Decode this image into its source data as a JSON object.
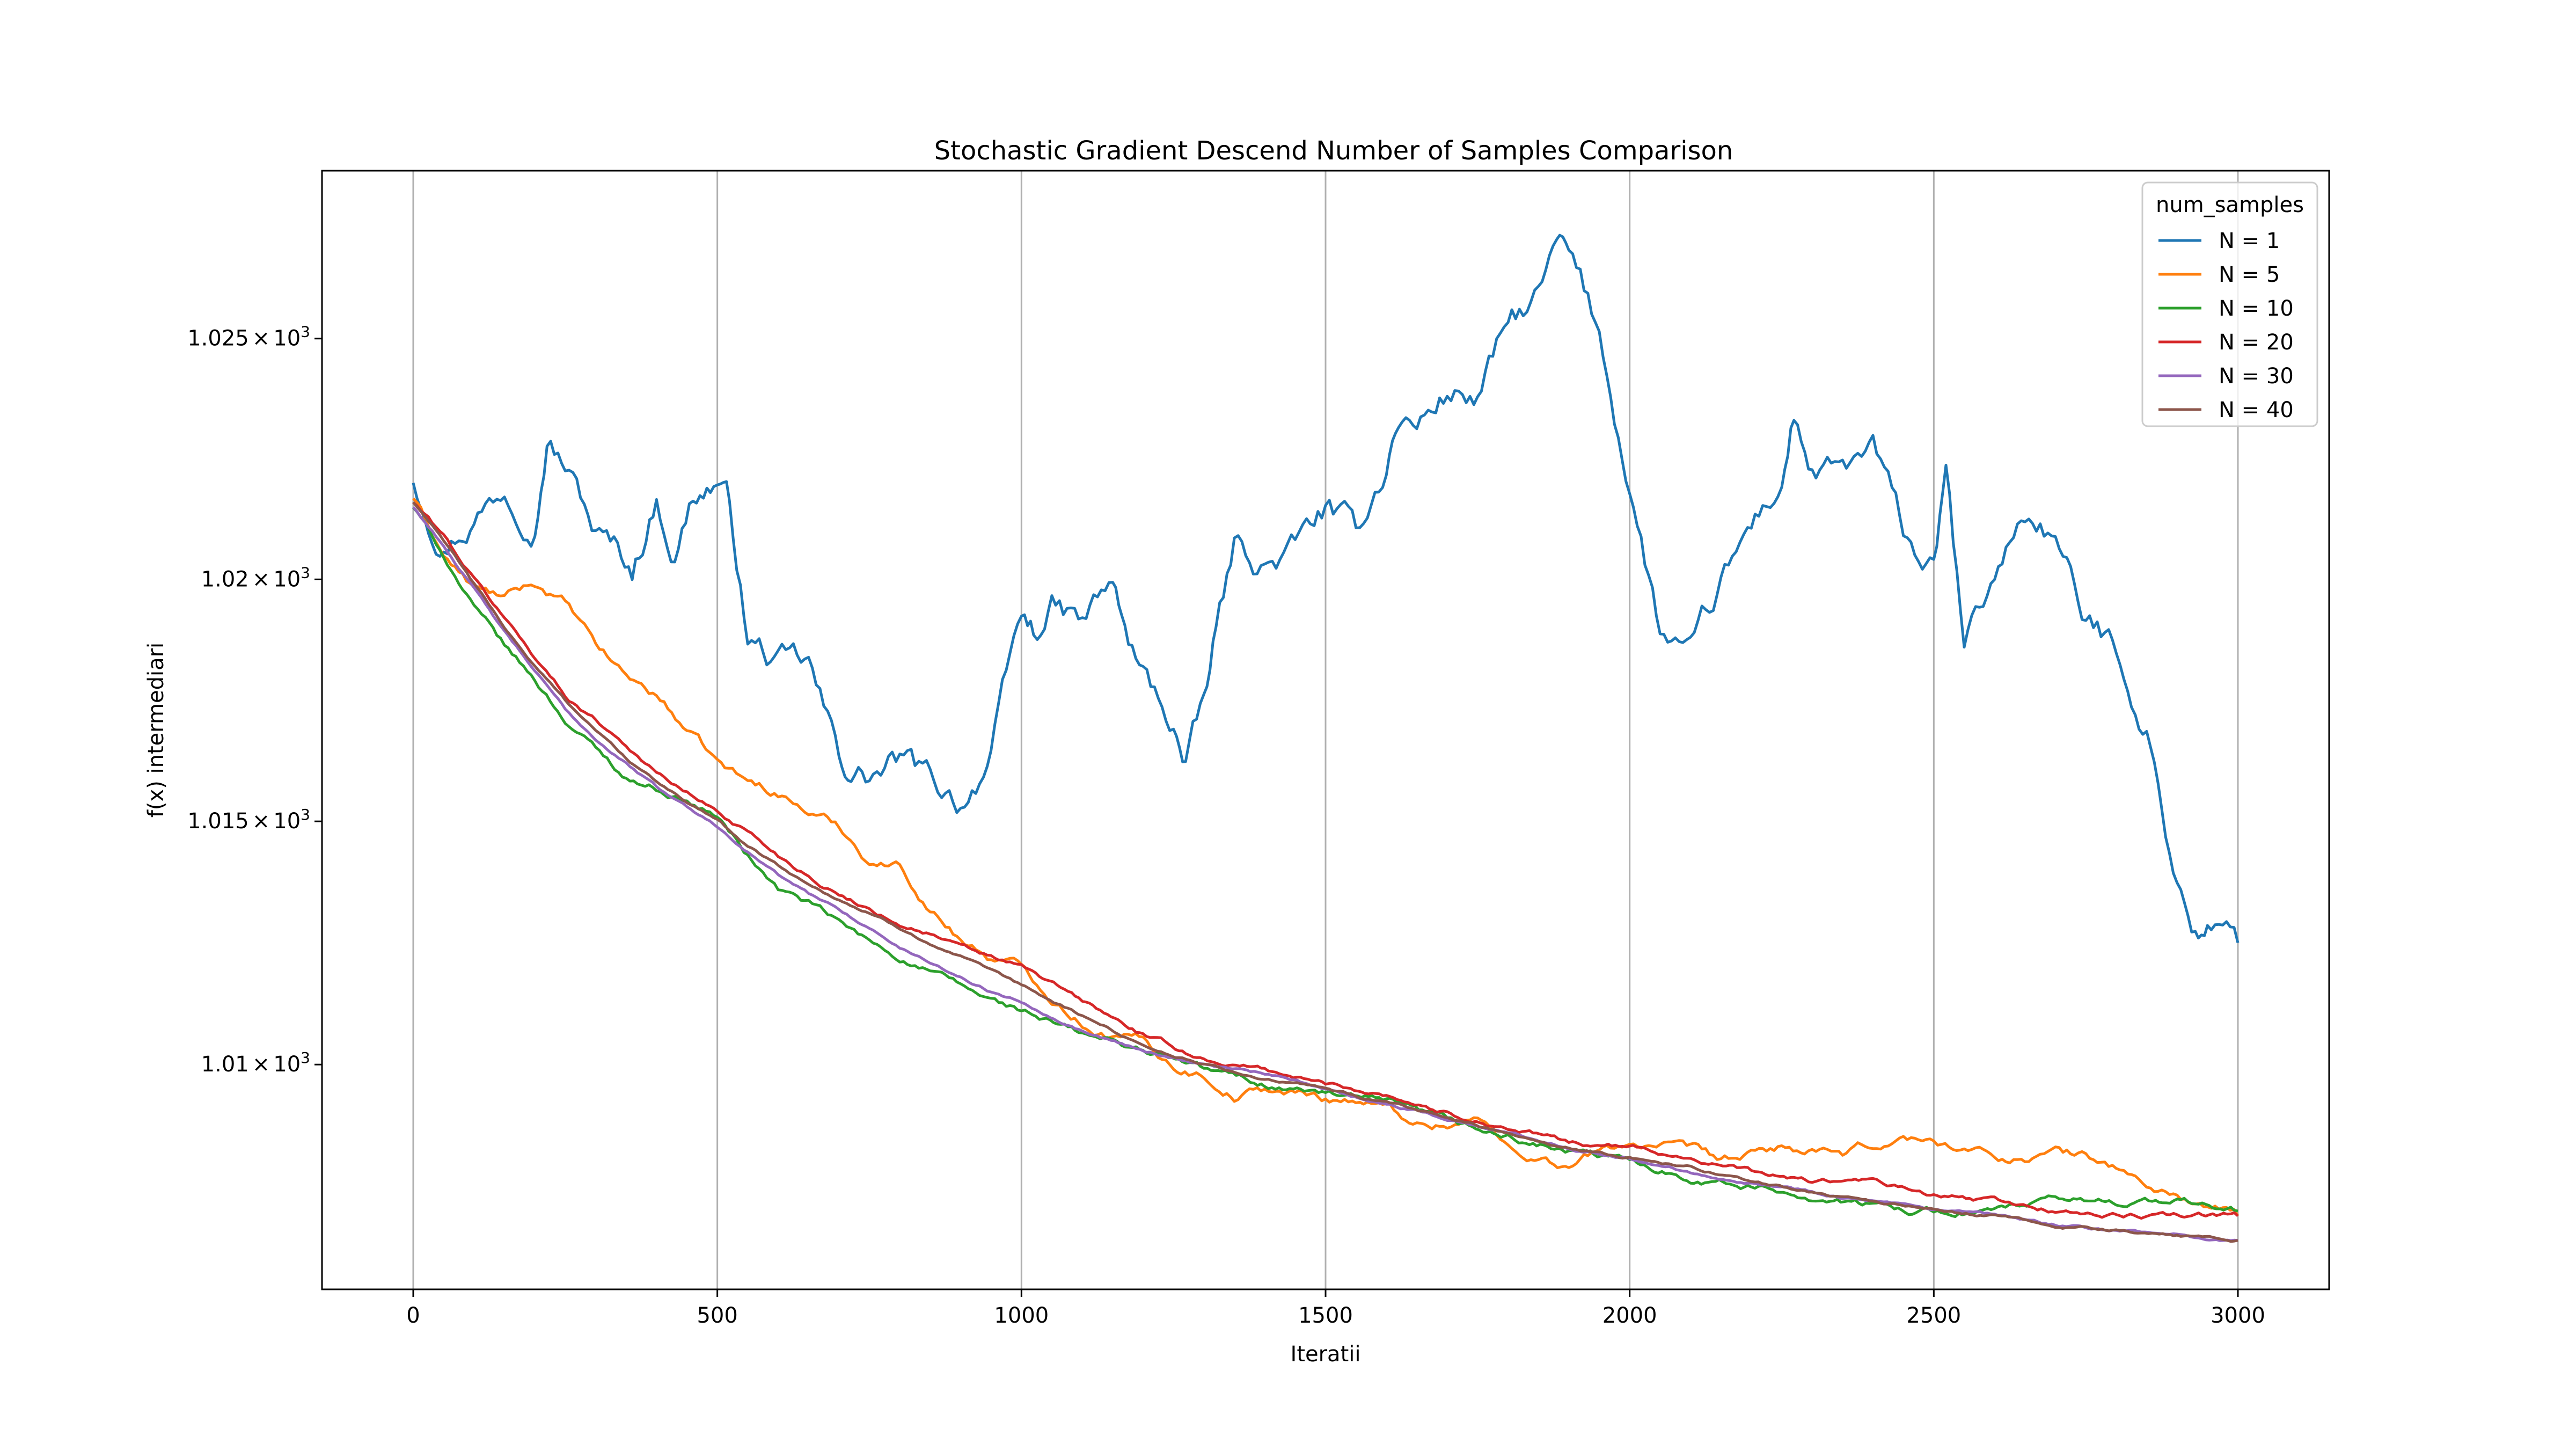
{
  "chart_data": {
    "type": "line",
    "title": "Stochastic Gradient Descend Number of Samples Comparison",
    "xlabel": "Iteratii",
    "ylabel": "f(x) intermediari",
    "xlim": [
      -150,
      3150
    ],
    "ylim": [
      1005.4,
      1028.5
    ],
    "yscale": "log",
    "x_ticks": [
      0,
      500,
      1000,
      1500,
      2000,
      2500,
      3000
    ],
    "x_tick_labels": [
      "0",
      "500",
      "1000",
      "1500",
      "2000",
      "2500",
      "3000"
    ],
    "y_ticks": [
      1010,
      1015,
      1020,
      1025
    ],
    "y_tick_labels": [
      {
        "base": "1.01",
        "mult": "×",
        "exp_base": "10",
        "exp": "3"
      },
      {
        "base": "1.015",
        "mult": "×",
        "exp_base": "10",
        "exp": "3"
      },
      {
        "base": "1.02",
        "mult": "×",
        "exp_base": "10",
        "exp": "3"
      },
      {
        "base": "1.025",
        "mult": "×",
        "exp_base": "10",
        "exp": "3"
      }
    ],
    "grid": "x-major",
    "legend": {
      "title": "num_samples",
      "placement": "top-right"
    },
    "series": [
      {
        "name": "N = 1",
        "color": "#1f77b4",
        "x": [
          0,
          50,
          100,
          150,
          200,
          220,
          250,
          300,
          330,
          360,
          400,
          430,
          460,
          500,
          520,
          550,
          600,
          650,
          700,
          720,
          750,
          800,
          850,
          900,
          950,
          1000,
          1020,
          1050,
          1100,
          1150,
          1170,
          1200,
          1250,
          1270,
          1300,
          1320,
          1350,
          1400,
          1450,
          1500,
          1550,
          1600,
          1620,
          1650,
          1700,
          1750,
          1800,
          1850,
          1880,
          1900,
          1950,
          2000,
          2050,
          2100,
          2150,
          2200,
          2250,
          2270,
          2300,
          2350,
          2400,
          2450,
          2500,
          2520,
          2550,
          2600,
          2650,
          2700,
          2750,
          2800,
          2850,
          2900,
          2930,
          2950,
          3000
        ],
        "values": [
          1022.1,
          1020.9,
          1021.4,
          1022.0,
          1021.5,
          1023.2,
          1022.5,
          1021.0,
          1020.6,
          1020.2,
          1021.7,
          1020.6,
          1021.8,
          1022.1,
          1021.5,
          1018.8,
          1018.2,
          1018.1,
          1016.2,
          1016.0,
          1015.9,
          1016.2,
          1015.7,
          1015.4,
          1016.4,
          1019.1,
          1018.8,
          1019.4,
          1019.0,
          1019.9,
          1018.8,
          1017.9,
          1017.0,
          1016.1,
          1017.3,
          1018.8,
          1020.6,
          1020.3,
          1020.6,
          1021.4,
          1020.8,
          1022.4,
          1023.4,
          1023.2,
          1023.9,
          1023.8,
          1025.2,
          1025.8,
          1026.8,
          1026.6,
          1025.0,
          1022.0,
          1018.9,
          1018.2,
          1019.7,
          1021.0,
          1022.0,
          1023.4,
          1022.2,
          1022.1,
          1022.6,
          1020.8,
          1020.1,
          1022.1,
          1018.4,
          1020.0,
          1021.4,
          1020.9,
          1019.0,
          1018.6,
          1017.0,
          1013.8,
          1012.8,
          1012.8,
          1012.5
        ]
      },
      {
        "name": "N = 5",
        "color": "#ff7f0e",
        "x": [
          0,
          50,
          100,
          150,
          200,
          250,
          300,
          350,
          400,
          450,
          500,
          550,
          600,
          650,
          700,
          750,
          800,
          850,
          900,
          950,
          1000,
          1050,
          1100,
          1150,
          1200,
          1250,
          1300,
          1350,
          1400,
          1450,
          1500,
          1550,
          1600,
          1650,
          1700,
          1750,
          1800,
          1850,
          1900,
          1950,
          2000,
          2050,
          2100,
          2150,
          2200,
          2250,
          2300,
          2350,
          2400,
          2450,
          2500,
          2550,
          2600,
          2650,
          2700,
          2750,
          2800,
          2850,
          2900,
          2950,
          3000
        ],
        "values": [
          1021.7,
          1020.5,
          1019.8,
          1019.6,
          1019.9,
          1019.5,
          1018.6,
          1018.0,
          1017.6,
          1016.9,
          1016.2,
          1015.8,
          1015.6,
          1015.2,
          1014.9,
          1014.2,
          1014.1,
          1013.2,
          1012.6,
          1012.2,
          1012.0,
          1011.4,
          1010.9,
          1010.6,
          1010.5,
          1010.0,
          1009.8,
          1009.4,
          1009.5,
          1009.4,
          1009.3,
          1009.3,
          1009.1,
          1008.8,
          1008.8,
          1008.9,
          1008.3,
          1008.1,
          1007.9,
          1008.2,
          1008.4,
          1008.3,
          1008.2,
          1008.0,
          1008.1,
          1008.3,
          1008.2,
          1008.1,
          1008.3,
          1008.5,
          1008.4,
          1008.3,
          1008.1,
          1008.1,
          1008.2,
          1008.1,
          1007.9,
          1007.5,
          1007.3,
          1007.1,
          1006.9
        ]
      },
      {
        "name": "N = 10",
        "color": "#2ca02c",
        "x": [
          0,
          50,
          100,
          150,
          200,
          250,
          300,
          350,
          400,
          450,
          500,
          550,
          600,
          650,
          700,
          750,
          800,
          850,
          900,
          950,
          1000,
          1100,
          1200,
          1300,
          1400,
          1500,
          1600,
          1700,
          1800,
          1900,
          2000,
          2100,
          2200,
          2300,
          2400,
          2500,
          2600,
          2700,
          2800,
          2900,
          3000
        ],
        "values": [
          1021.5,
          1020.5,
          1019.4,
          1018.6,
          1017.9,
          1017.1,
          1016.5,
          1015.9,
          1015.7,
          1015.4,
          1015.1,
          1014.3,
          1013.6,
          1013.3,
          1012.9,
          1012.5,
          1012.2,
          1011.9,
          1011.6,
          1011.3,
          1011.1,
          1010.6,
          1010.3,
          1009.9,
          1009.6,
          1009.4,
          1009.2,
          1008.8,
          1008.5,
          1008.2,
          1008.0,
          1007.7,
          1007.5,
          1007.3,
          1007.1,
          1007.0,
          1007.0,
          1007.2,
          1007.2,
          1007.2,
          1007.0
        ]
      },
      {
        "name": "N = 20",
        "color": "#d62728",
        "x": [
          0,
          50,
          100,
          150,
          200,
          250,
          300,
          350,
          400,
          450,
          500,
          550,
          600,
          650,
          700,
          750,
          800,
          850,
          900,
          950,
          1000,
          1100,
          1200,
          1300,
          1400,
          1500,
          1600,
          1700,
          1800,
          1900,
          2000,
          2100,
          2200,
          2300,
          2400,
          2500,
          2600,
          2700,
          2800,
          2900,
          3000
        ],
        "values": [
          1021.6,
          1020.9,
          1020.0,
          1019.2,
          1018.4,
          1017.6,
          1017.1,
          1016.6,
          1016.0,
          1015.6,
          1015.2,
          1014.8,
          1014.3,
          1013.9,
          1013.5,
          1013.2,
          1012.9,
          1012.7,
          1012.4,
          1012.2,
          1012.0,
          1011.3,
          1010.6,
          1010.1,
          1009.9,
          1009.6,
          1009.4,
          1009.0,
          1008.7,
          1008.4,
          1008.3,
          1008.1,
          1007.8,
          1007.6,
          1007.6,
          1007.3,
          1007.2,
          1007.0,
          1006.9,
          1006.9,
          1006.9
        ]
      },
      {
        "name": "N = 30",
        "color": "#9467bd",
        "x": [
          0,
          50,
          100,
          150,
          200,
          250,
          300,
          350,
          400,
          450,
          500,
          550,
          600,
          650,
          700,
          750,
          800,
          850,
          900,
          950,
          1000,
          1100,
          1200,
          1300,
          1400,
          1500,
          1600,
          1700,
          1800,
          1900,
          2000,
          2100,
          2200,
          2300,
          2400,
          2500,
          2600,
          2700,
          2800,
          2900,
          3000
        ],
        "values": [
          1021.5,
          1020.7,
          1019.8,
          1018.9,
          1018.1,
          1017.3,
          1016.7,
          1016.2,
          1015.7,
          1015.3,
          1014.9,
          1014.4,
          1013.9,
          1013.5,
          1013.2,
          1012.8,
          1012.4,
          1012.1,
          1011.8,
          1011.5,
          1011.3,
          1010.7,
          1010.3,
          1010.0,
          1009.8,
          1009.5,
          1009.2,
          1008.9,
          1008.6,
          1008.3,
          1008.1,
          1007.8,
          1007.6,
          1007.4,
          1007.2,
          1007.0,
          1006.9,
          1006.7,
          1006.6,
          1006.5,
          1006.4
        ]
      },
      {
        "name": "N = 40",
        "color": "#8c564b",
        "x": [
          0,
          50,
          100,
          150,
          200,
          250,
          300,
          350,
          400,
          450,
          500,
          550,
          600,
          650,
          700,
          750,
          800,
          850,
          900,
          950,
          1000,
          1100,
          1200,
          1300,
          1400,
          1500,
          1600,
          1700,
          1800,
          1900,
          2000,
          2100,
          2200,
          2300,
          2400,
          2500,
          2600,
          2700,
          2800,
          2900,
          3000
        ],
        "values": [
          1021.6,
          1020.8,
          1019.9,
          1019.0,
          1018.2,
          1017.5,
          1016.9,
          1016.3,
          1015.8,
          1015.4,
          1015.0,
          1014.5,
          1014.1,
          1013.7,
          1013.4,
          1013.1,
          1012.8,
          1012.5,
          1012.2,
          1011.9,
          1011.6,
          1011.0,
          1010.4,
          1010.0,
          1009.7,
          1009.5,
          1009.2,
          1008.9,
          1008.6,
          1008.3,
          1008.1,
          1007.9,
          1007.6,
          1007.4,
          1007.2,
          1007.0,
          1006.9,
          1006.7,
          1006.6,
          1006.5,
          1006.4
        ]
      }
    ]
  }
}
